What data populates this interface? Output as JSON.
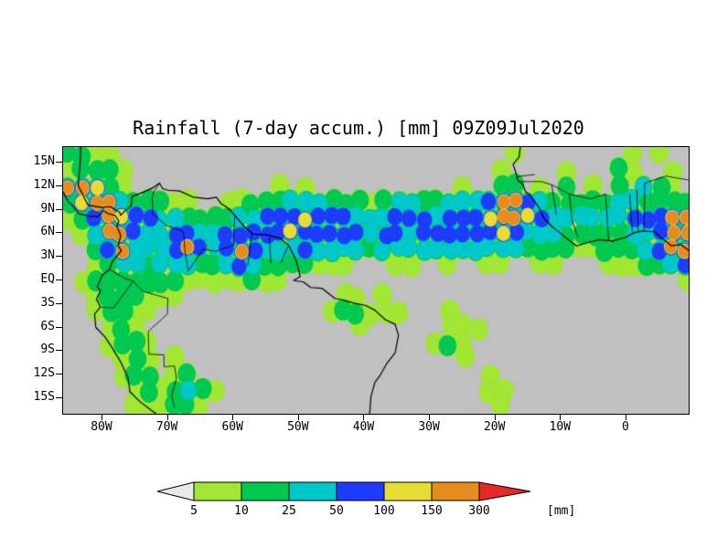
{
  "title": "Rainfall (7-day accum.) [mm] 09Z09Jul2020",
  "colorbar": {
    "labels": [
      "5",
      "10",
      "25",
      "50",
      "100",
      "150",
      "300"
    ],
    "unit_label": "[mm]"
  },
  "chart_data": {
    "type": "heatmap",
    "title": "Rainfall (7-day accum.) [mm] 09Z09Jul2020",
    "variable": "7-day accumulated rainfall",
    "units": "mm",
    "valid_time": "09Z09Jul2020",
    "lon_range": [
      -86,
      9.5
    ],
    "lat_range": [
      -17,
      17
    ],
    "x_ticks": [
      {
        "label": "80W",
        "lon": -80
      },
      {
        "label": "70W",
        "lon": -70
      },
      {
        "label": "60W",
        "lon": -60
      },
      {
        "label": "50W",
        "lon": -50
      },
      {
        "label": "40W",
        "lon": -40
      },
      {
        "label": "30W",
        "lon": -30
      },
      {
        "label": "20W",
        "lon": -20
      },
      {
        "label": "10W",
        "lon": -10
      },
      {
        "label": "0",
        "lon": 0
      }
    ],
    "y_ticks": [
      {
        "label": "15N",
        "lat": 15
      },
      {
        "label": "12N",
        "lat": 12
      },
      {
        "label": "9N",
        "lat": 9
      },
      {
        "label": "6N",
        "lat": 6
      },
      {
        "label": "3N",
        "lat": 3
      },
      {
        "label": "EQ",
        "lat": 0
      },
      {
        "label": "3S",
        "lat": -3
      },
      {
        "label": "6S",
        "lat": -6
      },
      {
        "label": "9S",
        "lat": -9
      },
      {
        "label": "12S",
        "lat": -12
      },
      {
        "label": "15S",
        "lat": -15
      }
    ],
    "levels": [
      5,
      10,
      25,
      50,
      100,
      150,
      300
    ],
    "colors": {
      "background": "#c0c0c0",
      "under": "#e8e8e8",
      "bins": [
        "#a0e632",
        "#00c850",
        "#00c8c8",
        "#1e3cff",
        "#e6dc32",
        "#e68c1e"
      ],
      "over": "#e62828"
    },
    "grid": {
      "note": ". = below 5mm; digits 1-7 = rainfall bin index (5,10,25,50,100,150,300 mm thresholds)",
      "lon_start": -85,
      "lon_step": 2,
      "lat_start": 16,
      "lat_step": -2,
      "cols": 48,
      "rows": [
        [
          "2211........",
          "............",
          "..........1.",
          ".......1.1.."
        ],
        [
          "12221.......",
          "............",
          ".........1..",
          "..1...21..1."
        ],
        [
          "66521.......",
          "....1.1.....",
          "......1..22.",
          "1.2.1.2.321."
        ],
        [
          "2566322211..",
          "112223332221",
          "233223334664",
          "322222332222"
        ],
        [
          "124654433222",
          "233444544433",
          "344434445665",
          "433333344466"
        ],
        [
          ".13664334433",
          "444445444443",
          "443444444543",
          "332222233466"
        ],
        [
          "..2463334643",
          "464333433332",
          "333333333332",
          "222112223466"
        ],
        [
          "..1233233322",
          "3432222111..",
          ".11..1..11..",
          "11...1112234"
        ],
        [
          ".12222222111",
          "11211.......",
          "............",
          "...........1"
        ],
        [
          "..1222111...",
          ".........11.",
          "1...........",
          "............"
        ],
        [
          "..12211.....",
          "........1221",
          "11...1......",
          "............"
        ],
        [
          "...121......",
          "..........1.",
          ".....111....",
          "............"
        ],
        [
          "...1221.....",
          "............",
          "....121.....",
          "............"
        ],
        [
          "....121.1...",
          "............",
          "......1.....",
          "............"
        ],
        [
          "....122.12..",
          "............",
          "........1...",
          "............"
        ],
        [
          ".....1212321",
          "............",
          "........11..",
          "............"
        ],
        [
          ".....111221.",
          "............",
          ".........1..",
          "............"
        ]
      ]
    },
    "coastlines": [
      {
        "name": "caribbean-and-south-america-north-east-coast",
        "points": [
          [
            -83.3,
            17
          ],
          [
            -83.4,
            14.9
          ],
          [
            -83.7,
            12.1
          ],
          [
            -82.2,
            9.6
          ],
          [
            -80.1,
            9.3
          ],
          [
            -78.8,
            9.4
          ],
          [
            -77.4,
            8.7
          ],
          [
            -77.2,
            8.3
          ],
          [
            -76.9,
            8.6
          ],
          [
            -75.6,
            9.5
          ],
          [
            -75.5,
            10.7
          ],
          [
            -74.2,
            11.1
          ],
          [
            -72.3,
            11.8
          ],
          [
            -71.3,
            12.4
          ],
          [
            -70.8,
            11.7
          ],
          [
            -70.0,
            11.5
          ],
          [
            -68.2,
            11.4
          ],
          [
            -66.1,
            10.6
          ],
          [
            -63.9,
            10.4
          ],
          [
            -62.6,
            10.6
          ],
          [
            -61.9,
            9.8
          ],
          [
            -60.8,
            9.2
          ],
          [
            -59.9,
            8.4
          ],
          [
            -58.4,
            6.9
          ],
          [
            -57.0,
            5.9
          ],
          [
            -54.9,
            5.8
          ],
          [
            -52.9,
            5.4
          ],
          [
            -51.6,
            4.5
          ],
          [
            -50.4,
            2.5
          ],
          [
            -49.8,
            0.5
          ],
          [
            -50.8,
            0.0
          ],
          [
            -49.3,
            -0.2
          ],
          [
            -48.2,
            -0.9
          ],
          [
            -46.5,
            -1.0
          ],
          [
            -44.5,
            -2.3
          ],
          [
            -43.2,
            -2.5
          ],
          [
            -41.6,
            -2.9
          ],
          [
            -39.8,
            -3.2
          ],
          [
            -38.4,
            -3.8
          ],
          [
            -36.8,
            -5.0
          ],
          [
            -35.3,
            -5.6
          ],
          [
            -34.8,
            -7.0
          ],
          [
            -35.3,
            -9.2
          ],
          [
            -36.6,
            -10.6
          ],
          [
            -37.6,
            -12.1
          ],
          [
            -38.4,
            -13.0
          ],
          [
            -39.0,
            -14.8
          ],
          [
            -39.2,
            -17
          ]
        ]
      },
      {
        "name": "pacific-coast",
        "points": [
          [
            -86,
            11.3
          ],
          [
            -85.2,
            10.0
          ],
          [
            -84.6,
            9.6
          ],
          [
            -83.6,
            8.5
          ],
          [
            -82.0,
            8.2
          ],
          [
            -80.7,
            8.1
          ],
          [
            -79.9,
            8.9
          ],
          [
            -79.1,
            8.5
          ],
          [
            -78.1,
            8.3
          ],
          [
            -77.5,
            7.6
          ],
          [
            -77.8,
            6.9
          ],
          [
            -77.2,
            5.7
          ],
          [
            -77.6,
            4.4
          ],
          [
            -77.1,
            3.8
          ],
          [
            -78.5,
            2.4
          ],
          [
            -78.9,
            1.4
          ],
          [
            -80.0,
            0.7
          ],
          [
            -80.8,
            -0.8
          ],
          [
            -80.3,
            -1.3
          ],
          [
            -80.9,
            -2.4
          ],
          [
            -80.3,
            -3.4
          ],
          [
            -81.2,
            -4.3
          ],
          [
            -81.0,
            -6.0
          ],
          [
            -79.6,
            -7.2
          ],
          [
            -78.5,
            -8.6
          ],
          [
            -77.2,
            -10.4
          ],
          [
            -76.1,
            -12.4
          ],
          [
            -75.8,
            -14.2
          ],
          [
            -74.2,
            -15.5
          ],
          [
            -72.3,
            -16.7
          ],
          [
            -71.8,
            -17
          ]
        ]
      },
      {
        "name": "africa-west-coast",
        "points": [
          [
            -16.2,
            17
          ],
          [
            -16.4,
            15.7
          ],
          [
            -17.3,
            14.8
          ],
          [
            -16.9,
            13.8
          ],
          [
            -16.6,
            12.8
          ],
          [
            -15.8,
            12.2
          ],
          [
            -15.4,
            11.3
          ],
          [
            -14.6,
            10.8
          ],
          [
            -13.8,
            9.8
          ],
          [
            -13.2,
            9.1
          ],
          [
            -12.6,
            7.9
          ],
          [
            -11.4,
            6.9
          ],
          [
            -10.5,
            6.3
          ],
          [
            -8.9,
            5.2
          ],
          [
            -7.6,
            4.4
          ],
          [
            -6.0,
            4.8
          ],
          [
            -4.1,
            5.2
          ],
          [
            -2.2,
            5.0
          ],
          [
            -0.1,
            5.5
          ],
          [
            1.2,
            6.1
          ],
          [
            2.5,
            6.3
          ],
          [
            4.3,
            6.2
          ],
          [
            5.4,
            5.4
          ],
          [
            6.9,
            4.4
          ],
          [
            8.3,
            4.6
          ],
          [
            9.5,
            3.8
          ]
        ]
      }
    ],
    "borders": [
      {
        "name": "venezuela-colombia",
        "points": [
          [
            -71.3,
            12.4
          ],
          [
            -72.4,
            10.9
          ],
          [
            -72.3,
            8.4
          ],
          [
            -70.2,
            7.0
          ],
          [
            -67.6,
            6.2
          ],
          [
            -67.4,
            3.8
          ],
          [
            -66.9,
            1.2
          ]
        ]
      },
      {
        "name": "venezuela-brazil-guyana",
        "points": [
          [
            -66.9,
            1.2
          ],
          [
            -64.6,
            4.0
          ],
          [
            -62.7,
            3.7
          ],
          [
            -60.0,
            4.5
          ],
          [
            -59.8,
            8.3
          ]
        ]
      },
      {
        "name": "guyana-suriname",
        "points": [
          [
            -57.2,
            5.9
          ],
          [
            -57.8,
            1.9
          ]
        ]
      },
      {
        "name": "suriname-french-guiana",
        "points": [
          [
            -54.5,
            5.5
          ],
          [
            -54.3,
            2.2
          ]
        ]
      },
      {
        "name": "french-guiana-brazil",
        "points": [
          [
            -51.7,
            4.3
          ],
          [
            -52.8,
            2.2
          ]
        ]
      },
      {
        "name": "colombia-ecuador",
        "points": [
          [
            -78.9,
            1.4
          ],
          [
            -76.7,
            0.3
          ],
          [
            -75.3,
            -0.1
          ]
        ]
      },
      {
        "name": "ecuador-peru",
        "points": [
          [
            -80.3,
            -3.4
          ],
          [
            -78.3,
            -3.5
          ],
          [
            -75.3,
            -0.1
          ]
        ]
      },
      {
        "name": "peru-brazil-bolivia",
        "points": [
          [
            -75.3,
            -0.1
          ],
          [
            -73.8,
            -1.4
          ],
          [
            -70.0,
            -2.3
          ],
          [
            -70.1,
            -4.3
          ],
          [
            -73.0,
            -6.5
          ],
          [
            -72.9,
            -9.4
          ],
          [
            -70.6,
            -9.5
          ],
          [
            -70.6,
            -11.0
          ],
          [
            -69.0,
            -10.9
          ],
          [
            -68.7,
            -12.5
          ],
          [
            -69.4,
            -14.6
          ],
          [
            -69.0,
            -16.2
          ]
        ]
      },
      {
        "name": "gambia",
        "points": [
          [
            -16.8,
            13.2
          ],
          [
            -14.0,
            13.5
          ]
        ]
      },
      {
        "name": "guinea-east",
        "points": [
          [
            -11.4,
            12.2
          ],
          [
            -10.7,
            8.4
          ]
        ]
      },
      {
        "name": "ivory-coast-west",
        "points": [
          [
            -8.7,
            11.0
          ],
          [
            -8.3,
            7.6
          ],
          [
            -7.4,
            5.5
          ]
        ]
      },
      {
        "name": "ghana-west",
        "points": [
          [
            -3.2,
            11.0
          ],
          [
            -2.7,
            5.1
          ]
        ]
      },
      {
        "name": "togo-west",
        "points": [
          [
            0.5,
            11.0
          ],
          [
            0.9,
            6.2
          ]
        ]
      },
      {
        "name": "benin-west",
        "points": [
          [
            1.6,
            11.5
          ],
          [
            1.8,
            6.3
          ]
        ]
      },
      {
        "name": "nigeria-west",
        "points": [
          [
            2.8,
            12.4
          ],
          [
            2.7,
            6.4
          ]
        ]
      },
      {
        "name": "sahel-belt",
        "points": [
          [
            -11.4,
            12.2
          ],
          [
            -8.7,
            11.0
          ],
          [
            -5.5,
            10.4
          ],
          [
            -3.2,
            11.0
          ]
        ]
      },
      {
        "name": "senegal-south",
        "points": [
          [
            -16.6,
            12.6
          ],
          [
            -13.0,
            12.6
          ],
          [
            -11.4,
            12.2
          ]
        ]
      },
      {
        "name": "niger-nigeria",
        "points": [
          [
            2.8,
            12.4
          ],
          [
            6.0,
            13.3
          ],
          [
            9.5,
            12.8
          ]
        ]
      }
    ]
  }
}
